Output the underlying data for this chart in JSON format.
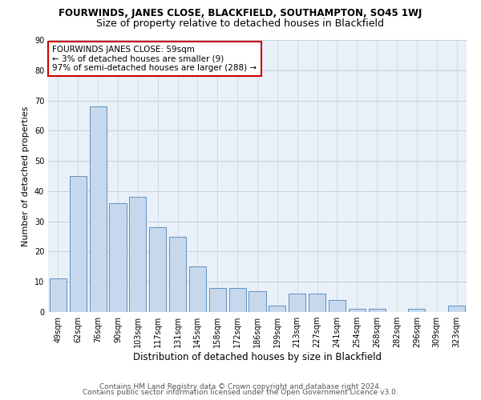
{
  "title1": "FOURWINDS, JANES CLOSE, BLACKFIELD, SOUTHAMPTON, SO45 1WJ",
  "title2": "Size of property relative to detached houses in Blackfield",
  "xlabel": "Distribution of detached houses by size in Blackfield",
  "ylabel": "Number of detached properties",
  "categories": [
    "49sqm",
    "62sqm",
    "76sqm",
    "90sqm",
    "103sqm",
    "117sqm",
    "131sqm",
    "145sqm",
    "158sqm",
    "172sqm",
    "186sqm",
    "199sqm",
    "213sqm",
    "227sqm",
    "241sqm",
    "254sqm",
    "268sqm",
    "282sqm",
    "296sqm",
    "309sqm",
    "323sqm"
  ],
  "values": [
    11,
    45,
    68,
    36,
    38,
    28,
    25,
    15,
    8,
    8,
    7,
    2,
    6,
    6,
    4,
    1,
    1,
    0,
    1,
    0,
    2
  ],
  "annotation_text": "FOURWINDS JANES CLOSE: 59sqm\n← 3% of detached houses are smaller (9)\n97% of semi-detached houses are larger (288) →",
  "annotation_box_edge": "#cc0000",
  "ylim": [
    0,
    90
  ],
  "yticks": [
    0,
    10,
    20,
    30,
    40,
    50,
    60,
    70,
    80,
    90
  ],
  "footer1": "Contains HM Land Registry data © Crown copyright and database right 2024.",
  "footer2": "Contains public sector information licensed under the Open Government Licence v3.0.",
  "bg_color": "#ffffff",
  "plot_bg_color": "#eaf0f8",
  "bar_color": "#c8d8ec",
  "bar_edge_color": "#6090c0",
  "grid_color": "#c0c8d8",
  "title1_fontsize": 8.5,
  "title2_fontsize": 9,
  "ylabel_fontsize": 8,
  "xlabel_fontsize": 8.5,
  "tick_fontsize": 7,
  "footer_fontsize": 6.5,
  "annotation_fontsize": 7.5
}
